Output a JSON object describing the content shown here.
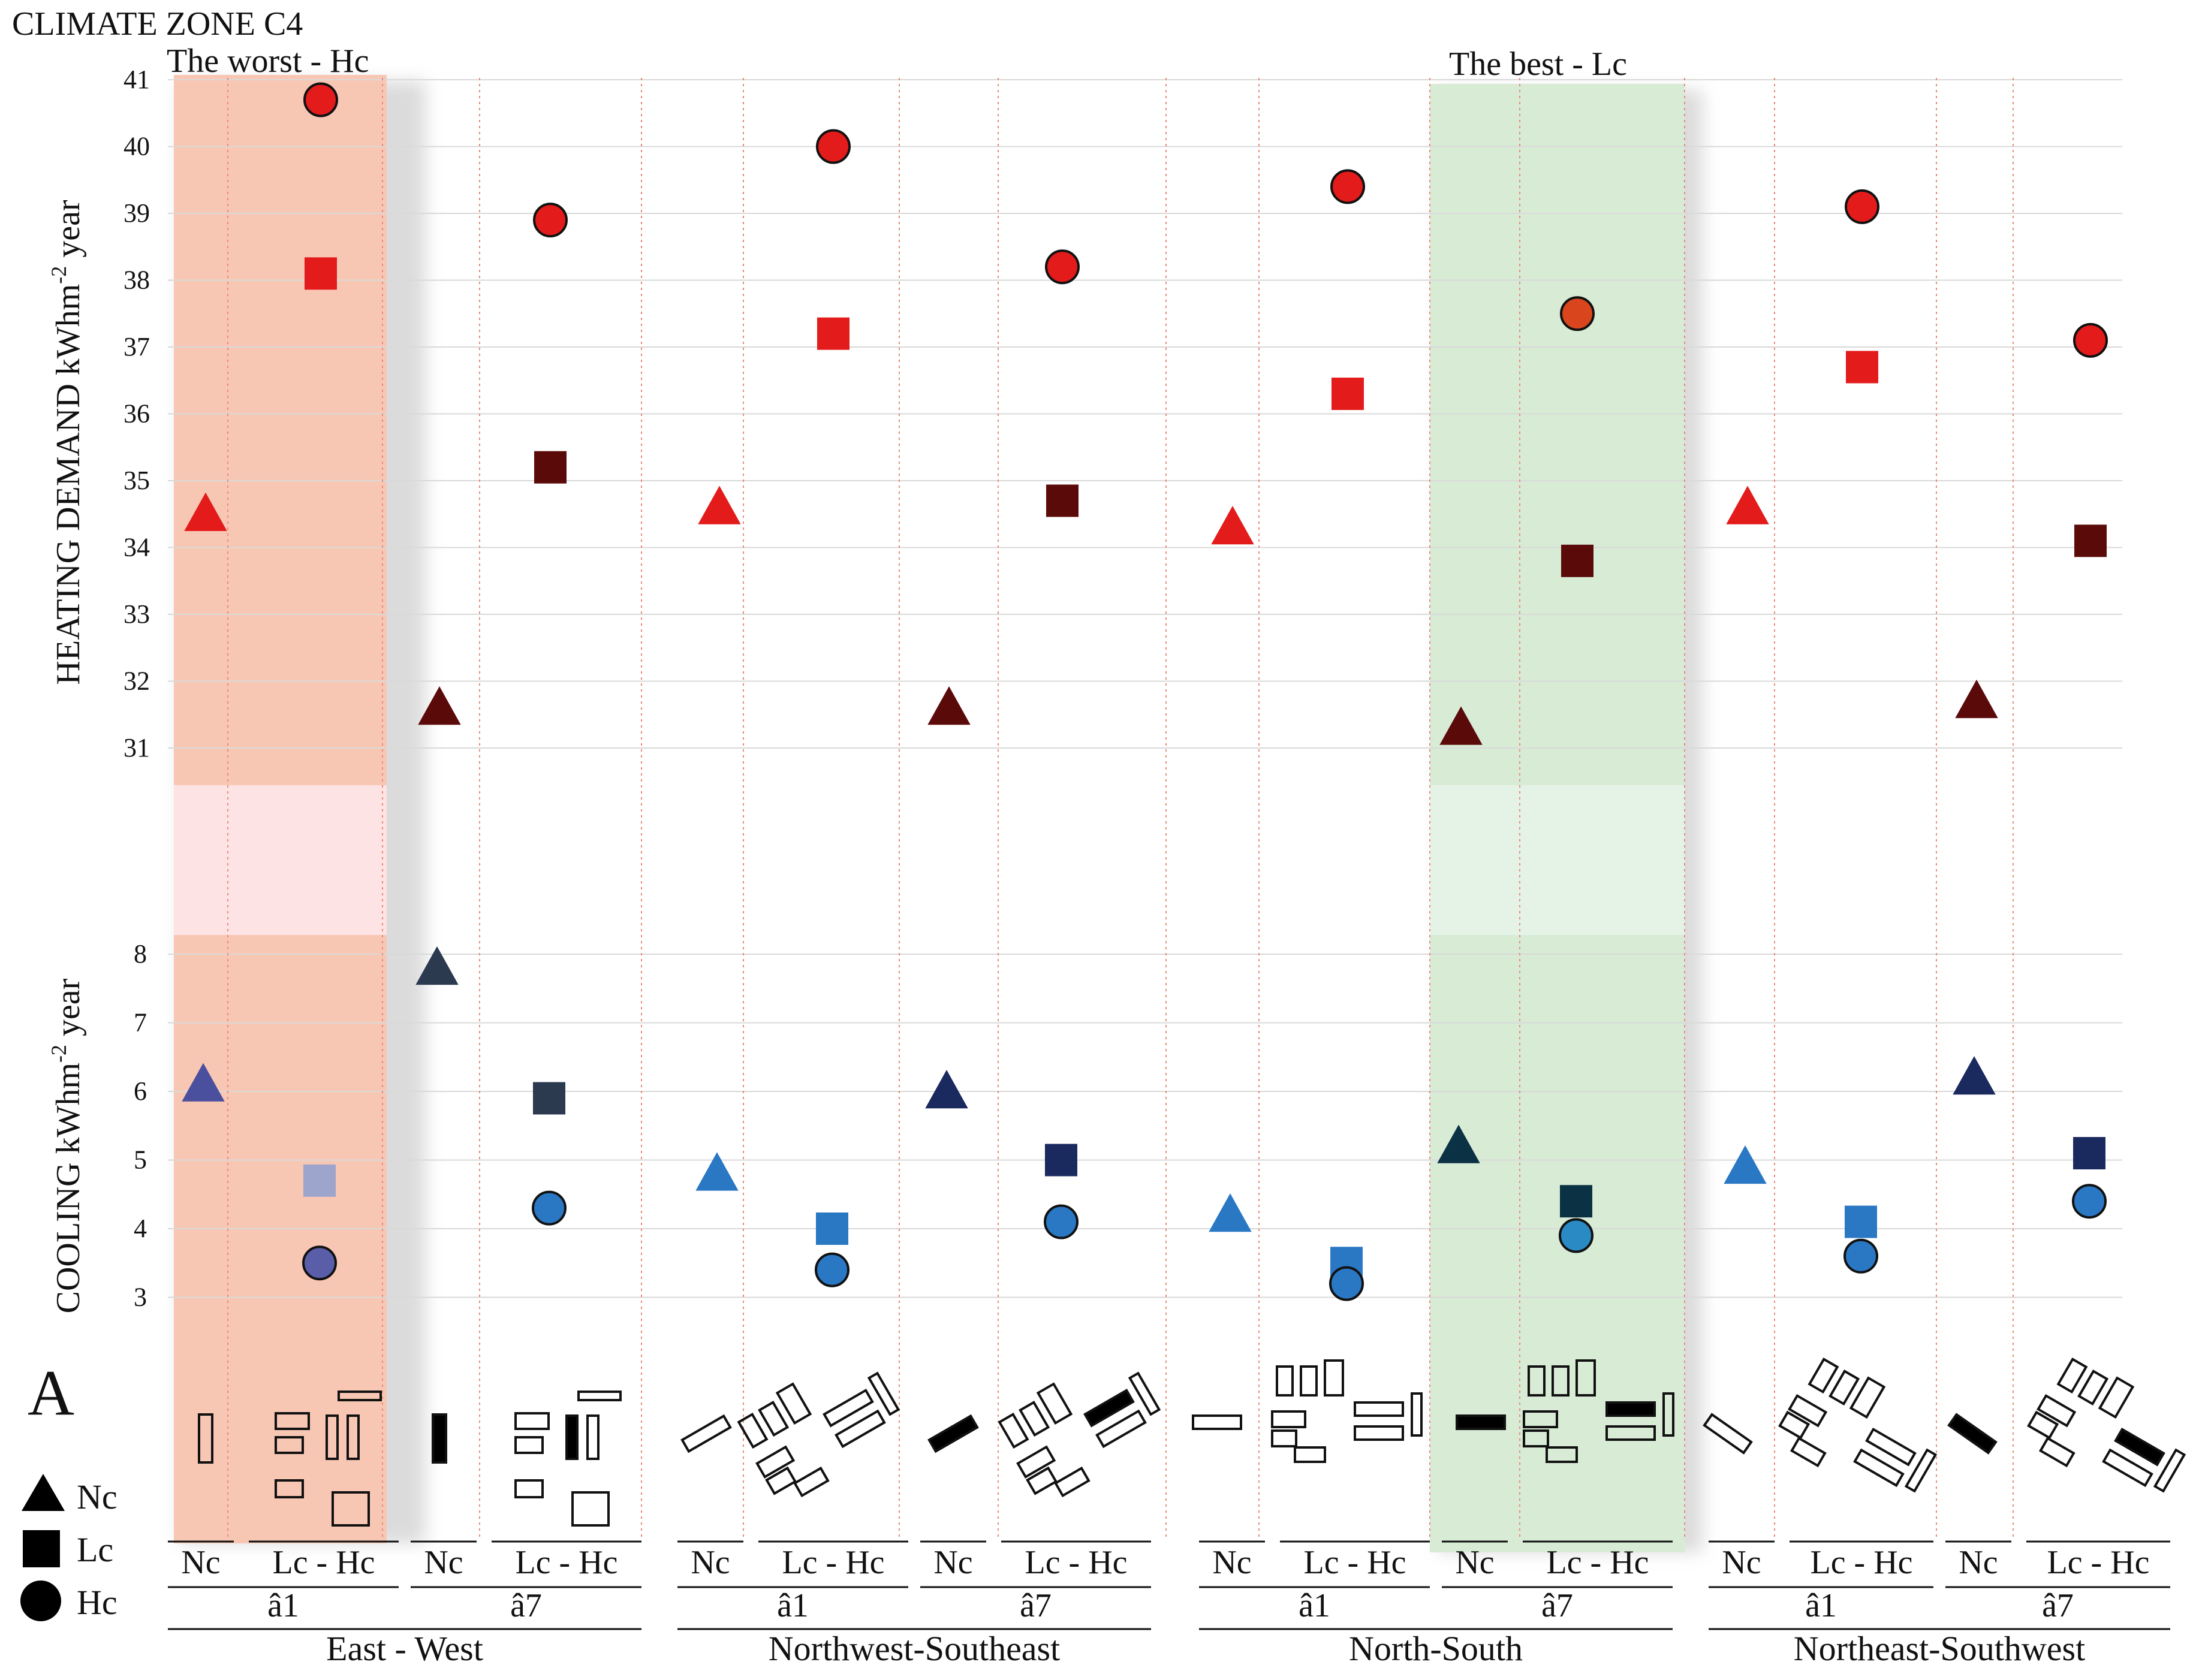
{
  "chart_data": {
    "type": "scatter",
    "title": "CLIMATE ZONE C4",
    "panel_label": "A",
    "annotations": {
      "worst": "The worst - Hc",
      "best": "The best - Lc"
    },
    "heating_axis": {
      "ylabel": "HEATING DEMAND kWhm",
      "ylabel_sup": "-2",
      "ylabel_tail": " year",
      "ylim": [
        31,
        41
      ],
      "ticks": [
        "31",
        "32",
        "33",
        "34",
        "35",
        "36",
        "37",
        "38",
        "39",
        "40",
        "41"
      ]
    },
    "cooling_axis": {
      "ylabel": "COOLING kWhm",
      "ylabel_sup": "-2",
      "ylabel_tail": " year",
      "ylim": [
        3,
        8
      ],
      "ticks": [
        "3",
        "4",
        "5",
        "6",
        "7",
        "8"
      ]
    },
    "legend": [
      {
        "marker": "triangle",
        "label": "Nc"
      },
      {
        "marker": "square",
        "label": "Lc"
      },
      {
        "marker": "circle",
        "label": "Hc"
      }
    ],
    "orientations": [
      "East - West",
      "Northwest-Southeast",
      "North-South",
      "Northeast-Southwest"
    ],
    "angle_labels": [
      "â1",
      "â7"
    ],
    "column_labels": [
      "Nc",
      "Lc - Hc"
    ],
    "series": [
      {
        "orientation": "East - West",
        "angle": "â1",
        "heating": {
          "Nc": 34.5,
          "Lc": 38.1,
          "Hc": 40.7
        },
        "cooling": {
          "Nc": 6.1,
          "Lc": 4.7,
          "Hc": 3.5
        },
        "heating_colors": {
          "Nc": "#e31b1b",
          "Lc": "#e31b1b",
          "Hc": "#e31b1b"
        },
        "cooling_colors": {
          "Nc": "#4a4f9e",
          "Lc": "#9ea5cc",
          "Hc": "#5a5ea8"
        }
      },
      {
        "orientation": "East - West",
        "angle": "â7",
        "heating": {
          "Nc": 31.6,
          "Lc": 35.2,
          "Hc": 38.9
        },
        "cooling": {
          "Nc": 7.8,
          "Lc": 5.9,
          "Hc": 4.3
        },
        "heating_colors": {
          "Nc": "#5b0a0a",
          "Lc": "#5b0a0a",
          "Hc": "#e31b1b"
        },
        "cooling_colors": {
          "Nc": "#2b3a4e",
          "Lc": "#2b3a4e",
          "Hc": "#2a78c4"
        }
      },
      {
        "orientation": "Northwest-Southeast",
        "angle": "â1",
        "heating": {
          "Nc": 34.6,
          "Lc": 37.2,
          "Hc": 40.0
        },
        "cooling": {
          "Nc": 4.8,
          "Lc": 4.0,
          "Hc": 3.4
        },
        "heating_colors": {
          "Nc": "#e31b1b",
          "Lc": "#e31b1b",
          "Hc": "#e31b1b"
        },
        "cooling_colors": {
          "Nc": "#2a78c4",
          "Lc": "#2a78c4",
          "Hc": "#2a78c4"
        }
      },
      {
        "orientation": "Northwest-Southeast",
        "angle": "â7",
        "heating": {
          "Nc": 31.6,
          "Lc": 34.7,
          "Hc": 38.2
        },
        "cooling": {
          "Nc": 6.0,
          "Lc": 5.0,
          "Hc": 4.1
        },
        "heating_colors": {
          "Nc": "#5b0a0a",
          "Lc": "#5b0a0a",
          "Hc": "#e31b1b"
        },
        "cooling_colors": {
          "Nc": "#1b2a5e",
          "Lc": "#1b2a5e",
          "Hc": "#2a78c4"
        }
      },
      {
        "orientation": "North-South",
        "angle": "â1",
        "heating": {
          "Nc": 34.3,
          "Lc": 36.3,
          "Hc": 39.4
        },
        "cooling": {
          "Nc": 4.2,
          "Lc": 3.5,
          "Hc": 3.2
        },
        "heating_colors": {
          "Nc": "#e31b1b",
          "Lc": "#e31b1b",
          "Hc": "#e31b1b"
        },
        "cooling_colors": {
          "Nc": "#2a78c4",
          "Lc": "#2a78c4",
          "Hc": "#2a78c4"
        }
      },
      {
        "orientation": "North-South",
        "angle": "â7",
        "heating": {
          "Nc": 31.3,
          "Lc": 33.8,
          "Hc": 37.5
        },
        "cooling": {
          "Nc": 5.2,
          "Lc": 4.4,
          "Hc": 3.9
        },
        "heating_colors": {
          "Nc": "#5b0a0a",
          "Lc": "#5b0a0a",
          "Hc": "#d9461e"
        },
        "cooling_colors": {
          "Nc": "#0b3145",
          "Lc": "#0b3145",
          "Hc": "#2a8ac4"
        }
      },
      {
        "orientation": "Northeast-Southwest",
        "angle": "â1",
        "heating": {
          "Nc": 34.6,
          "Lc": 36.7,
          "Hc": 39.1
        },
        "cooling": {
          "Nc": 4.9,
          "Lc": 4.1,
          "Hc": 3.6
        },
        "heating_colors": {
          "Nc": "#e31b1b",
          "Lc": "#e31b1b",
          "Hc": "#e31b1b"
        },
        "cooling_colors": {
          "Nc": "#2a78c4",
          "Lc": "#2a78c4",
          "Hc": "#2a78c4"
        }
      },
      {
        "orientation": "Northeast-Southwest",
        "angle": "â7",
        "heating": {
          "Nc": 31.7,
          "Lc": 34.1,
          "Hc": 37.1
        },
        "cooling": {
          "Nc": 6.2,
          "Lc": 5.1,
          "Hc": 4.4
        },
        "heating_colors": {
          "Nc": "#5b0a0a",
          "Lc": "#5b0a0a",
          "Hc": "#e31b1b"
        },
        "cooling_colors": {
          "Nc": "#1b2a5e",
          "Lc": "#1b2a5e",
          "Hc": "#2a78c4"
        }
      }
    ],
    "colors": {
      "worst_band": "#f8c7b4",
      "best_band": "#d8ebd5",
      "grid": "#d9d9d9",
      "divider": "#e98a7a"
    }
  }
}
